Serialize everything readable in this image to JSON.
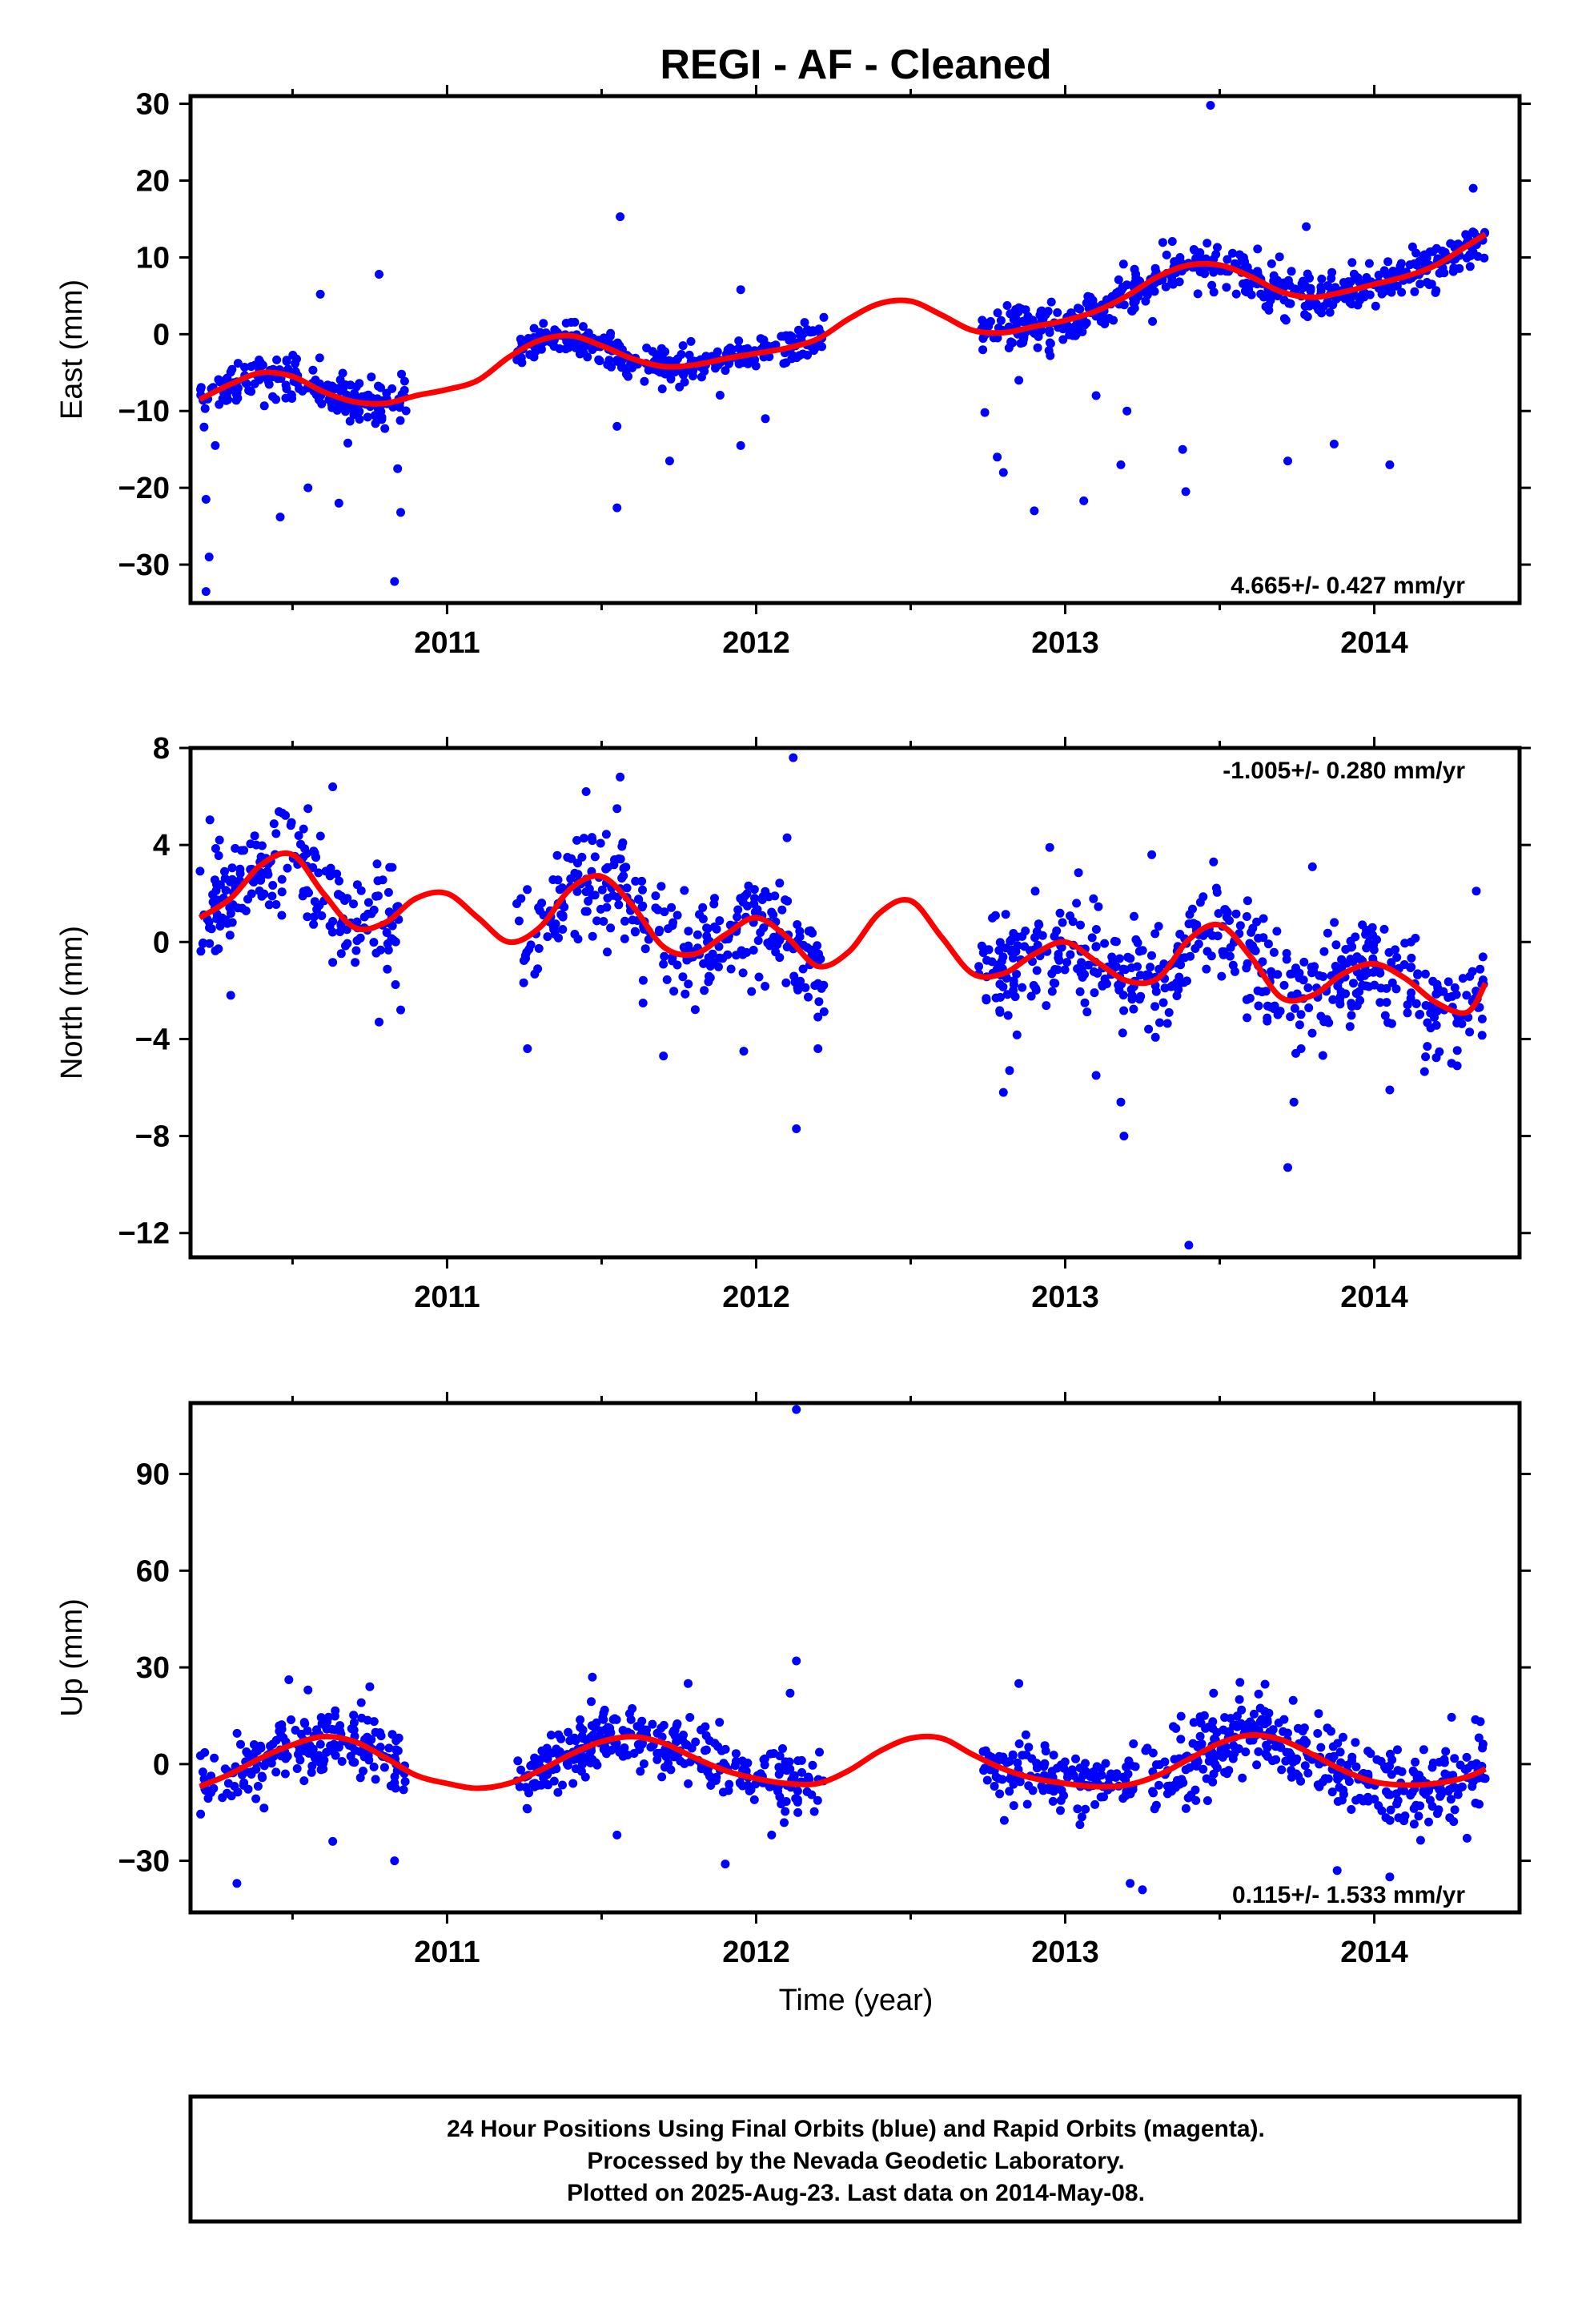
{
  "title": "REGI  - AF - Cleaned",
  "xlabel": "Time (year)",
  "footer": [
    "24 Hour Positions Using Final Orbits (blue) and Rapid Orbits (magenta).",
    "Processed by the Nevada Geodetic Laboratory.",
    "Plotted on 2025-Aug-23. Last data on 2014-May-08."
  ],
  "colors": {
    "points": "#0000ff",
    "model": "#ff0000",
    "frame": "#000000"
  },
  "chart_data": [
    {
      "type": "scatter",
      "ylabel": "East (mm)",
      "rate_label": "4.665+/- 0.427 mm/yr",
      "xlim": [
        2010.17,
        2014.47
      ],
      "ylim": [
        -35,
        31
      ],
      "xticks": [
        2011,
        2012,
        2013,
        2014
      ],
      "yticks": [
        30,
        20,
        10,
        0,
        -10,
        -20,
        -30
      ],
      "model": {
        "x": [
          2010.2,
          2010.3,
          2010.4,
          2010.5,
          2010.6,
          2010.7,
          2010.8,
          2010.9,
          2011.0,
          2011.1,
          2011.2,
          2011.3,
          2011.4,
          2011.5,
          2011.6,
          2011.7,
          2011.8,
          2011.9,
          2012.0,
          2012.1,
          2012.2,
          2012.3,
          2012.4,
          2012.5,
          2012.6,
          2012.7,
          2012.8,
          2012.9,
          2013.0,
          2013.1,
          2013.2,
          2013.3,
          2013.4,
          2013.5,
          2013.6,
          2013.7,
          2013.8,
          2013.9,
          2014.0,
          2014.1,
          2014.2,
          2014.3,
          2014.36
        ],
        "y": [
          -8.5,
          -6.5,
          -5.0,
          -5.5,
          -7.5,
          -8.8,
          -9.0,
          -8.0,
          -7.2,
          -6.0,
          -3.0,
          -0.8,
          -0.2,
          -1.5,
          -3.2,
          -4.2,
          -4.0,
          -3.2,
          -2.5,
          -1.8,
          -0.6,
          2.0,
          4.0,
          4.3,
          2.5,
          0.5,
          0.2,
          1.0,
          1.8,
          3.0,
          5.0,
          7.5,
          9.0,
          9.0,
          7.5,
          5.5,
          4.8,
          5.5,
          6.5,
          7.5,
          9.0,
          11.5,
          13.0
        ]
      },
      "segments": [
        {
          "start": 2010.2,
          "end": 2010.87,
          "noise": 1.4
        },
        {
          "start": 2011.22,
          "end": 2012.22,
          "noise": 1.1
        },
        {
          "start": 2012.72,
          "end": 2014.36,
          "noise": 1.4
        }
      ],
      "outliers": [
        {
          "x": 2010.22,
          "y": -33.5
        },
        {
          "x": 2010.23,
          "y": -29.0
        },
        {
          "x": 2010.22,
          "y": -21.5
        },
        {
          "x": 2010.25,
          "y": -14.5
        },
        {
          "x": 2010.46,
          "y": -23.8
        },
        {
          "x": 2010.55,
          "y": -20.0
        },
        {
          "x": 2010.65,
          "y": -22.0
        },
        {
          "x": 2010.59,
          "y": 5.2
        },
        {
          "x": 2010.78,
          "y": 7.8
        },
        {
          "x": 2010.83,
          "y": -32.2
        },
        {
          "x": 2010.85,
          "y": -23.2
        },
        {
          "x": 2010.84,
          "y": -17.5
        },
        {
          "x": 2011.56,
          "y": 15.3
        },
        {
          "x": 2011.55,
          "y": -22.6
        },
        {
          "x": 2011.55,
          "y": -12.0
        },
        {
          "x": 2011.72,
          "y": -16.5
        },
        {
          "x": 2011.95,
          "y": 5.8
        },
        {
          "x": 2011.95,
          "y": -14.5
        },
        {
          "x": 2012.03,
          "y": -11.0
        },
        {
          "x": 2012.74,
          "y": -10.2
        },
        {
          "x": 2012.78,
          "y": -16.0
        },
        {
          "x": 2012.8,
          "y": -18.0
        },
        {
          "x": 2012.9,
          "y": -23.0
        },
        {
          "x": 2013.06,
          "y": -21.7
        },
        {
          "x": 2013.18,
          "y": -17.0
        },
        {
          "x": 2013.38,
          "y": -15.0
        },
        {
          "x": 2013.39,
          "y": -20.5
        },
        {
          "x": 2013.47,
          "y": 29.8
        },
        {
          "x": 2013.72,
          "y": -16.5
        },
        {
          "x": 2013.78,
          "y": 14.0
        },
        {
          "x": 2013.87,
          "y": -14.3
        },
        {
          "x": 2014.05,
          "y": -17.0
        },
        {
          "x": 2014.32,
          "y": 19.0
        },
        {
          "x": 2013.1,
          "y": -8.0
        },
        {
          "x": 2012.85,
          "y": -6.0
        },
        {
          "x": 2013.2,
          "y": -10.0
        }
      ]
    },
    {
      "type": "scatter",
      "ylabel": "North (mm)",
      "rate_label": "-1.005+/- 0.280 mm/yr",
      "xlim": [
        2010.17,
        2014.47
      ],
      "ylim": [
        -13,
        8
      ],
      "xticks": [
        2011,
        2012,
        2013,
        2014
      ],
      "yticks": [
        8,
        4,
        0,
        -4,
        -8,
        -12
      ],
      "model": {
        "x": [
          2010.2,
          2010.3,
          2010.4,
          2010.5,
          2010.6,
          2010.7,
          2010.8,
          2010.9,
          2011.0,
          2011.1,
          2011.2,
          2011.3,
          2011.4,
          2011.5,
          2011.6,
          2011.7,
          2011.8,
          2011.9,
          2012.0,
          2012.1,
          2012.2,
          2012.3,
          2012.4,
          2012.5,
          2012.6,
          2012.7,
          2012.8,
          2012.9,
          2013.0,
          2013.1,
          2013.2,
          2013.3,
          2013.4,
          2013.5,
          2013.6,
          2013.7,
          2013.8,
          2013.9,
          2014.0,
          2014.1,
          2014.2,
          2014.3,
          2014.36
        ],
        "y": [
          1.0,
          1.8,
          3.2,
          3.6,
          2.0,
          0.6,
          0.8,
          1.8,
          2.0,
          1.0,
          0.0,
          0.6,
          2.2,
          2.7,
          1.5,
          -0.2,
          -0.5,
          0.3,
          1.0,
          0.2,
          -1.0,
          -0.4,
          1.2,
          1.7,
          0.2,
          -1.3,
          -1.3,
          -0.5,
          0.0,
          -0.8,
          -1.6,
          -1.5,
          0.1,
          0.7,
          -0.6,
          -2.3,
          -2.2,
          -1.3,
          -0.9,
          -1.5,
          -2.5,
          -2.9,
          -1.7
        ]
      },
      "segments": [
        {
          "start": 2010.2,
          "end": 2010.87,
          "noise": 1.1
        },
        {
          "start": 2011.22,
          "end": 2012.22,
          "noise": 1.1
        },
        {
          "start": 2012.72,
          "end": 2014.36,
          "noise": 1.0
        }
      ],
      "outliers": [
        {
          "x": 2010.3,
          "y": -2.2
        },
        {
          "x": 2010.55,
          "y": 5.5
        },
        {
          "x": 2010.63,
          "y": 6.4
        },
        {
          "x": 2010.78,
          "y": -3.3
        },
        {
          "x": 2010.85,
          "y": -2.8
        },
        {
          "x": 2011.26,
          "y": -4.4
        },
        {
          "x": 2011.45,
          "y": 6.2
        },
        {
          "x": 2011.56,
          "y": 6.8
        },
        {
          "x": 2011.55,
          "y": 5.5
        },
        {
          "x": 2011.7,
          "y": -4.7
        },
        {
          "x": 2011.96,
          "y": -4.5
        },
        {
          "x": 2012.12,
          "y": 7.6
        },
        {
          "x": 2012.13,
          "y": -7.7
        },
        {
          "x": 2012.2,
          "y": -4.4
        },
        {
          "x": 2012.1,
          "y": 4.3
        },
        {
          "x": 2012.82,
          "y": -5.3
        },
        {
          "x": 2012.8,
          "y": -6.2
        },
        {
          "x": 2012.95,
          "y": 3.9
        },
        {
          "x": 2013.18,
          "y": -6.6
        },
        {
          "x": 2013.19,
          "y": -8.0
        },
        {
          "x": 2013.28,
          "y": 3.6
        },
        {
          "x": 2013.4,
          "y": -12.5
        },
        {
          "x": 2013.48,
          "y": 3.3
        },
        {
          "x": 2013.72,
          "y": -9.3
        },
        {
          "x": 2013.74,
          "y": -6.6
        },
        {
          "x": 2013.8,
          "y": 3.1
        },
        {
          "x": 2014.05,
          "y": -6.1
        },
        {
          "x": 2014.33,
          "y": 2.1
        },
        {
          "x": 2014.25,
          "y": -5.0
        },
        {
          "x": 2013.1,
          "y": -5.5
        }
      ]
    },
    {
      "type": "scatter",
      "ylabel": "Up (mm)",
      "rate_label": "0.115+/- 1.533 mm/yr",
      "xlim": [
        2010.17,
        2014.47
      ],
      "ylim": [
        -46,
        112
      ],
      "xticks": [
        2011,
        2012,
        2013,
        2014
      ],
      "yticks": [
        90,
        60,
        30,
        0,
        -30
      ],
      "model": {
        "x": [
          2010.2,
          2010.3,
          2010.4,
          2010.5,
          2010.6,
          2010.7,
          2010.8,
          2010.9,
          2011.0,
          2011.1,
          2011.2,
          2011.3,
          2011.4,
          2011.5,
          2011.6,
          2011.7,
          2011.8,
          2011.9,
          2012.0,
          2012.1,
          2012.2,
          2012.3,
          2012.4,
          2012.5,
          2012.6,
          2012.7,
          2012.8,
          2012.9,
          2013.0,
          2013.1,
          2013.2,
          2013.3,
          2013.4,
          2013.5,
          2013.6,
          2013.7,
          2013.8,
          2013.9,
          2014.0,
          2014.1,
          2014.2,
          2014.3,
          2014.36
        ],
        "y": [
          -7.0,
          -3.0,
          2.0,
          6.0,
          8.5,
          7.0,
          2.0,
          -3.5,
          -6.0,
          -7.5,
          -6.0,
          -2.0,
          3.0,
          7.0,
          8.5,
          6.5,
          2.0,
          -2.0,
          -4.5,
          -6.0,
          -6.0,
          -2.0,
          4.0,
          8.0,
          8.0,
          3.0,
          -1.5,
          -4.5,
          -6.0,
          -7.0,
          -6.5,
          -3.5,
          1.5,
          6.5,
          9.0,
          7.5,
          3.0,
          -2.0,
          -5.5,
          -6.5,
          -6.0,
          -4.0,
          -1.5
        ]
      },
      "segments": [
        {
          "start": 2010.2,
          "end": 2010.87,
          "noise": 5.5
        },
        {
          "start": 2011.22,
          "end": 2012.22,
          "noise": 5.0
        },
        {
          "start": 2012.72,
          "end": 2014.36,
          "noise": 6.0
        }
      ],
      "outliers": [
        {
          "x": 2012.13,
          "y": 110
        },
        {
          "x": 2012.13,
          "y": 32
        },
        {
          "x": 2012.11,
          "y": 22
        },
        {
          "x": 2010.32,
          "y": -37
        },
        {
          "x": 2010.55,
          "y": 23
        },
        {
          "x": 2010.75,
          "y": 24
        },
        {
          "x": 2011.47,
          "y": 27
        },
        {
          "x": 2011.78,
          "y": 25
        },
        {
          "x": 2011.9,
          "y": -31
        },
        {
          "x": 2012.85,
          "y": 25
        },
        {
          "x": 2013.25,
          "y": -39
        },
        {
          "x": 2013.21,
          "y": -37
        },
        {
          "x": 2013.88,
          "y": -33
        },
        {
          "x": 2013.48,
          "y": 22
        },
        {
          "x": 2014.05,
          "y": -35
        },
        {
          "x": 2014.3,
          "y": -23
        },
        {
          "x": 2010.63,
          "y": -24
        },
        {
          "x": 2010.83,
          "y": -30
        },
        {
          "x": 2011.55,
          "y": -22
        },
        {
          "x": 2012.05,
          "y": -22
        }
      ]
    }
  ]
}
